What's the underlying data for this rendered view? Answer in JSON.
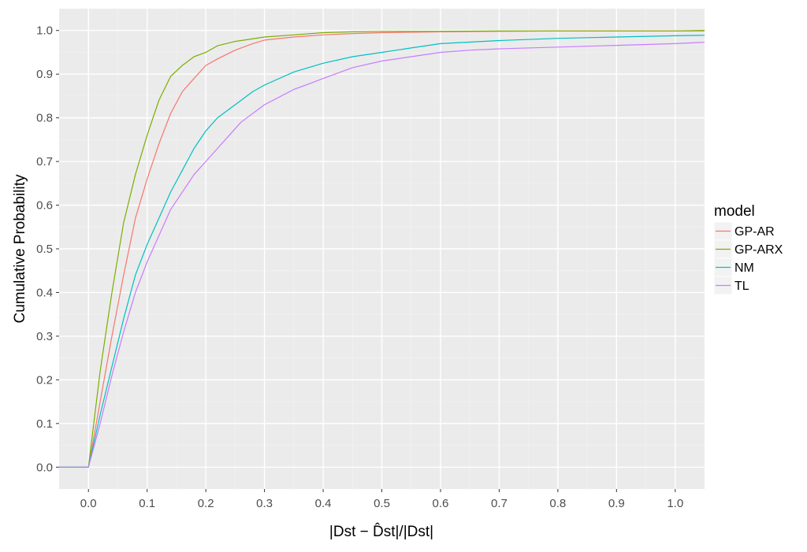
{
  "chart_data": {
    "type": "line",
    "title": "",
    "xlabel": "|Dst − D̂st|/|Dst|",
    "ylabel": "Cumulative Probability",
    "xlim": [
      -0.05,
      1.05
    ],
    "ylim": [
      -0.05,
      1.05
    ],
    "x_ticks": [
      "0.0",
      "0.1",
      "0.2",
      "0.3",
      "0.4",
      "0.5",
      "0.6",
      "0.7",
      "0.8",
      "0.9",
      "1.0"
    ],
    "x_tick_values": [
      0.0,
      0.1,
      0.2,
      0.3,
      0.4,
      0.5,
      0.6,
      0.7,
      0.8,
      0.9,
      1.0
    ],
    "y_ticks": [
      "0.0",
      "0.1",
      "0.2",
      "0.3",
      "0.4",
      "0.5",
      "0.6",
      "0.7",
      "0.8",
      "0.9",
      "1.0"
    ],
    "y_tick_values": [
      0.0,
      0.1,
      0.2,
      0.3,
      0.4,
      0.5,
      0.6,
      0.7,
      0.8,
      0.9,
      1.0
    ],
    "grid": true,
    "legend": {
      "title": "model",
      "position": "right"
    },
    "series": [
      {
        "name": "GP-AR",
        "color": "#F8766D",
        "x": [
          -0.05,
          0.0,
          0.02,
          0.04,
          0.06,
          0.08,
          0.1,
          0.12,
          0.14,
          0.16,
          0.18,
          0.2,
          0.22,
          0.25,
          0.28,
          0.3,
          0.35,
          0.4,
          0.45,
          0.5,
          0.6,
          0.7,
          0.8,
          0.9,
          1.0,
          1.05
        ],
        "y": [
          0.0,
          0.0,
          0.15,
          0.3,
          0.44,
          0.57,
          0.66,
          0.74,
          0.81,
          0.86,
          0.89,
          0.92,
          0.935,
          0.955,
          0.97,
          0.978,
          0.985,
          0.99,
          0.993,
          0.995,
          0.997,
          0.998,
          0.999,
          0.999,
          0.999,
          0.999
        ]
      },
      {
        "name": "GP-ARX",
        "color": "#7CAE00",
        "x": [
          -0.05,
          0.0,
          0.02,
          0.04,
          0.06,
          0.08,
          0.1,
          0.12,
          0.14,
          0.16,
          0.18,
          0.2,
          0.22,
          0.25,
          0.3,
          0.35,
          0.4,
          0.45,
          0.5,
          0.6,
          0.7,
          0.8,
          0.9,
          1.0,
          1.05
        ],
        "y": [
          0.0,
          0.0,
          0.22,
          0.4,
          0.56,
          0.67,
          0.76,
          0.84,
          0.895,
          0.92,
          0.94,
          0.95,
          0.965,
          0.975,
          0.985,
          0.99,
          0.995,
          0.997,
          0.998,
          0.998,
          0.999,
          0.999,
          0.999,
          0.999,
          1.0
        ]
      },
      {
        "name": "NM",
        "color": "#00BFC4",
        "x": [
          -0.05,
          0.0,
          0.02,
          0.04,
          0.06,
          0.08,
          0.1,
          0.12,
          0.14,
          0.16,
          0.18,
          0.2,
          0.22,
          0.25,
          0.28,
          0.3,
          0.35,
          0.4,
          0.45,
          0.5,
          0.55,
          0.6,
          0.7,
          0.8,
          0.9,
          1.0,
          1.05
        ],
        "y": [
          0.0,
          0.0,
          0.12,
          0.23,
          0.34,
          0.44,
          0.51,
          0.57,
          0.63,
          0.68,
          0.73,
          0.77,
          0.8,
          0.83,
          0.86,
          0.875,
          0.905,
          0.925,
          0.94,
          0.95,
          0.96,
          0.97,
          0.977,
          0.982,
          0.985,
          0.988,
          0.989
        ]
      },
      {
        "name": "TL",
        "color": "#C77CFF",
        "x": [
          -0.05,
          0.0,
          0.02,
          0.04,
          0.06,
          0.08,
          0.1,
          0.12,
          0.14,
          0.16,
          0.18,
          0.2,
          0.22,
          0.24,
          0.26,
          0.3,
          0.35,
          0.38,
          0.4,
          0.45,
          0.5,
          0.55,
          0.6,
          0.65,
          0.7,
          0.8,
          0.9,
          1.0,
          1.05
        ],
        "y": [
          0.0,
          0.0,
          0.1,
          0.21,
          0.31,
          0.4,
          0.47,
          0.53,
          0.59,
          0.63,
          0.67,
          0.7,
          0.73,
          0.76,
          0.79,
          0.83,
          0.865,
          0.88,
          0.89,
          0.915,
          0.93,
          0.94,
          0.95,
          0.955,
          0.958,
          0.962,
          0.966,
          0.97,
          0.973
        ]
      }
    ]
  }
}
